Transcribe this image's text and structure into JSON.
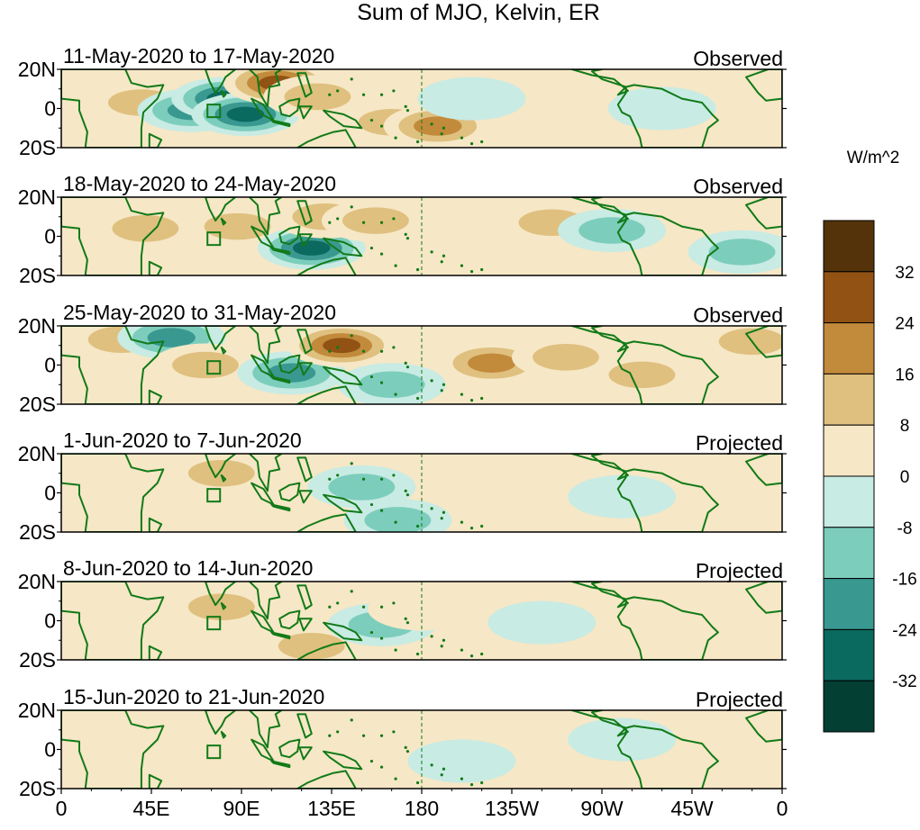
{
  "chart_data": {
    "type": "heatmap",
    "title": "Sum of MJO, Kelvin, ER",
    "units": "W/m^2",
    "x_ticks": [
      "0",
      "45E",
      "90E",
      "135E",
      "180",
      "135W",
      "90W",
      "45W",
      "0"
    ],
    "y_ticks": [
      "20N",
      "0",
      "20S"
    ],
    "xlim_deg_east": [
      0,
      360
    ],
    "ylim_deg_lat": [
      -20,
      20
    ],
    "colorbar": {
      "levels": [
        -40,
        -32,
        -24,
        -16,
        -8,
        0,
        8,
        16,
        24,
        32,
        40
      ],
      "tick_labels": [
        "32",
        "24",
        "16",
        "8",
        "0",
        "-8",
        "-16",
        "-24",
        "-32"
      ],
      "colors": [
        "#033f32",
        "#0b6a5f",
        "#399890",
        "#7ccdbc",
        "#c8ebe4",
        "#f6e7c6",
        "#dfc07f",
        "#c28a3b",
        "#915214",
        "#55330a"
      ]
    },
    "panels": [
      {
        "date_range": "11-May-2020 to 17-May-2020",
        "label": "Observed",
        "anomalies": [
          {
            "lon": 40,
            "lat": 3,
            "value": 14
          },
          {
            "lon": 65,
            "lat": -1,
            "value": -18
          },
          {
            "lon": 82,
            "lat": 5,
            "value": -28
          },
          {
            "lon": 92,
            "lat": -3,
            "value": -26
          },
          {
            "lon": 108,
            "lat": 13,
            "value": 30
          },
          {
            "lon": 128,
            "lat": 6,
            "value": 16
          },
          {
            "lon": 165,
            "lat": -7,
            "value": 12
          },
          {
            "lon": 188,
            "lat": -9,
            "value": 20
          },
          {
            "lon": 205,
            "lat": 5,
            "value": -8
          },
          {
            "lon": 300,
            "lat": 0,
            "value": -8
          }
        ]
      },
      {
        "date_range": "18-May-2020 to 24-May-2020",
        "label": "Observed",
        "anomalies": [
          {
            "lon": 42,
            "lat": 4,
            "value": 10
          },
          {
            "lon": 88,
            "lat": 5,
            "value": 14
          },
          {
            "lon": 125,
            "lat": -6,
            "value": -26
          },
          {
            "lon": 132,
            "lat": 10,
            "value": 14
          },
          {
            "lon": 157,
            "lat": 8,
            "value": 12
          },
          {
            "lon": 245,
            "lat": 7,
            "value": 16
          },
          {
            "lon": 275,
            "lat": 3,
            "value": -9
          },
          {
            "lon": 340,
            "lat": -8,
            "value": -9
          }
        ]
      },
      {
        "date_range": "25-May-2020 to 31-May-2020",
        "label": "Observed",
        "anomalies": [
          {
            "lon": 30,
            "lat": 13,
            "value": 14
          },
          {
            "lon": 55,
            "lat": 14,
            "value": -22
          },
          {
            "lon": 72,
            "lat": 0,
            "value": 16
          },
          {
            "lon": 115,
            "lat": -4,
            "value": -20
          },
          {
            "lon": 140,
            "lat": 10,
            "value": 26
          },
          {
            "lon": 165,
            "lat": -10,
            "value": -10
          },
          {
            "lon": 215,
            "lat": 1,
            "value": 18
          },
          {
            "lon": 252,
            "lat": 4,
            "value": 10
          },
          {
            "lon": 290,
            "lat": -5,
            "value": 14
          },
          {
            "lon": 345,
            "lat": 12,
            "value": 12
          }
        ]
      },
      {
        "date_range": "1-Jun-2020 to 7-Jun-2020",
        "label": "Projected",
        "anomalies": [
          {
            "lon": 80,
            "lat": 10,
            "value": 10
          },
          {
            "lon": 150,
            "lat": 3,
            "value": -10
          },
          {
            "lon": 168,
            "lat": -14,
            "value": -14
          },
          {
            "lon": 235,
            "lat": 8,
            "value": 8
          },
          {
            "lon": 280,
            "lat": -2,
            "value": -8
          }
        ]
      },
      {
        "date_range": "8-Jun-2020 to 14-Jun-2020",
        "label": "Projected",
        "anomalies": [
          {
            "lon": 80,
            "lat": 7,
            "value": 10
          },
          {
            "lon": 125,
            "lat": -13,
            "value": 14
          },
          {
            "lon": 160,
            "lat": -2,
            "value": -10
          },
          {
            "lon": 180,
            "lat": 6,
            "value": 6
          },
          {
            "lon": 240,
            "lat": -1,
            "value": -6
          }
        ]
      },
      {
        "date_range": "15-Jun-2020 to 21-Jun-2020",
        "label": "Projected",
        "anomalies": [
          {
            "lon": 95,
            "lat": -4,
            "value": 8
          },
          {
            "lon": 150,
            "lat": 8,
            "value": 7
          },
          {
            "lon": 200,
            "lat": -6,
            "value": -7
          },
          {
            "lon": 280,
            "lat": 5,
            "value": -6
          }
        ]
      }
    ]
  }
}
